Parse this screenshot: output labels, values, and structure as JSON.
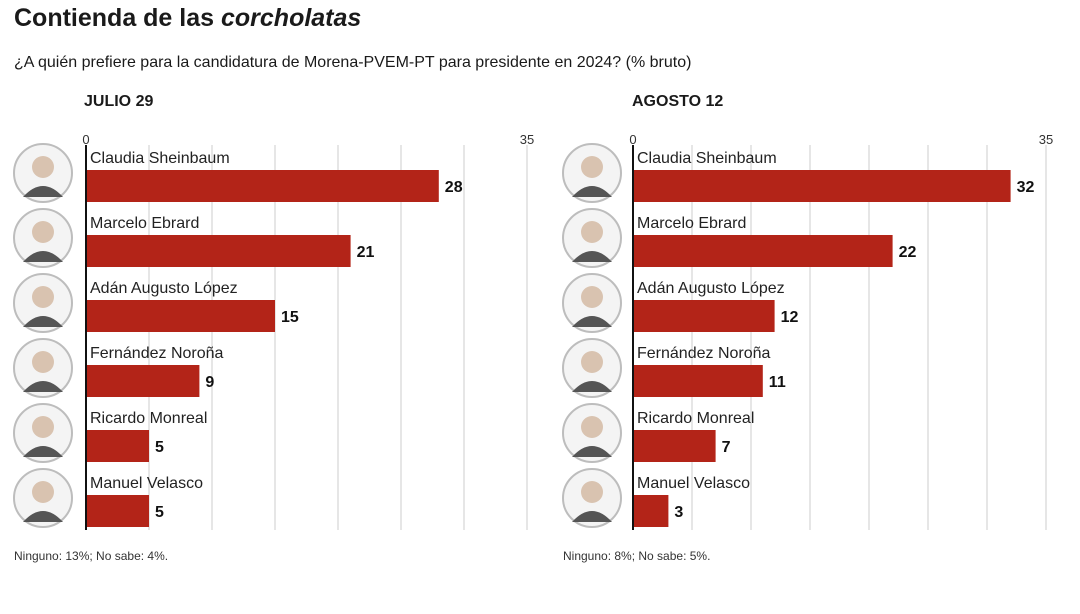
{
  "title_main": "Contienda de las ",
  "title_italic": "corcholatas",
  "subtitle": "¿A quién prefiere para la candidatura de Morena-PVEM-PT para presidente en 2024?  (% bruto)",
  "colors": {
    "bar": "#b32418",
    "axis": "#111111",
    "grid": "#cccccc",
    "avatar_ring": "#bdbdbd"
  },
  "chart_data": [
    {
      "type": "bar",
      "title": "JULIO 29",
      "categories": [
        "Claudia Sheinbaum",
        "Marcelo Ebrard",
        "Adán Augusto López",
        "Fernández Noroña",
        "Ricardo Monreal",
        "Manuel Velasco"
      ],
      "values": [
        28,
        21,
        15,
        9,
        5,
        5
      ],
      "value_labels": [
        "28",
        "21",
        "15",
        "9",
        "5",
        "5"
      ],
      "xlim": [
        0,
        35
      ],
      "tick_labels": [
        "0",
        "35"
      ],
      "grid": true,
      "footnote": "Ninguno: 13%; No sabe: 4%."
    },
    {
      "type": "bar",
      "title": "AGOSTO 12",
      "categories": [
        "Claudia Sheinbaum",
        "Marcelo Ebrard",
        "Adán Augusto López",
        "Fernández Noroña",
        "Ricardo Monreal",
        "Manuel Velasco"
      ],
      "values": [
        32,
        22,
        12,
        11,
        7,
        3
      ],
      "value_labels": [
        "32",
        "22",
        "12",
        "11",
        "7",
        "3"
      ],
      "xlim": [
        0,
        35
      ],
      "tick_labels": [
        "0",
        "35"
      ],
      "grid": true,
      "footnote": "Ninguno: 8%; No sabe: 5%."
    }
  ]
}
